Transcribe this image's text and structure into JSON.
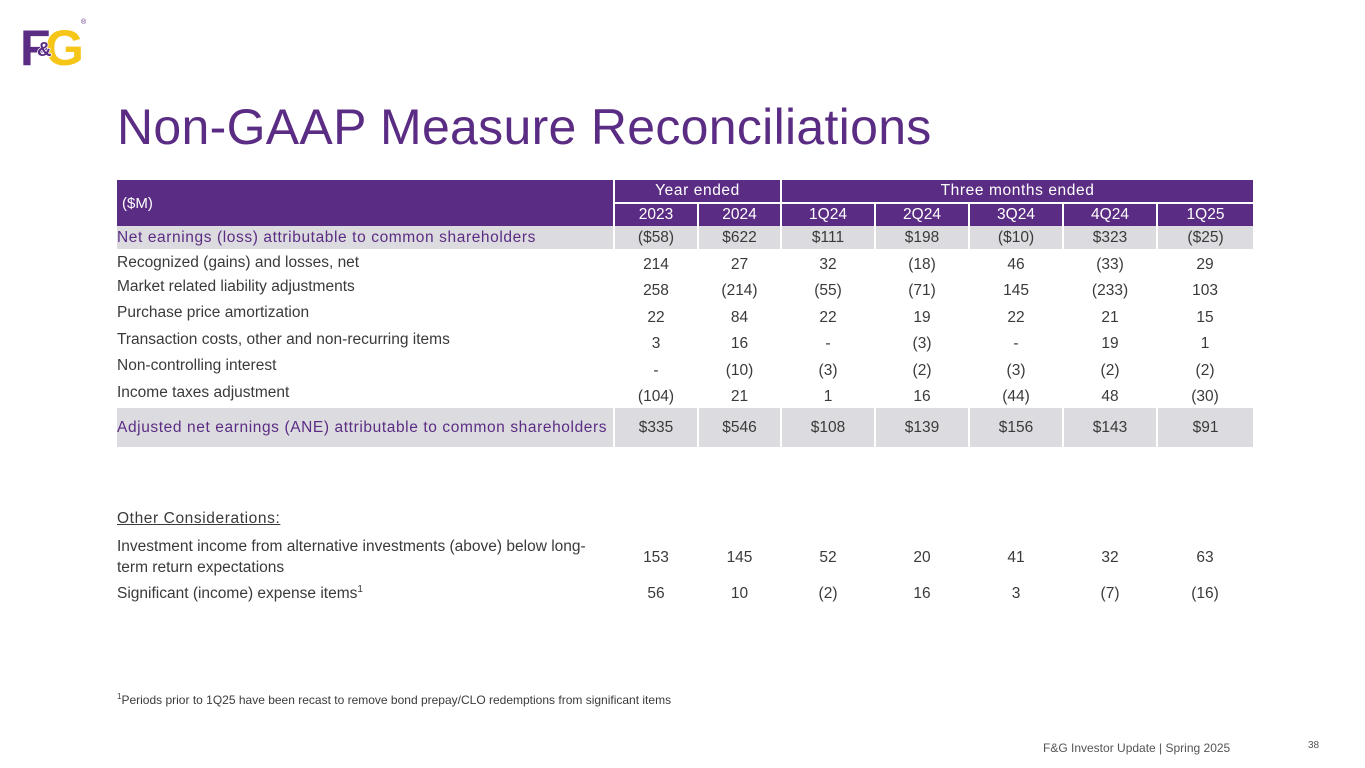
{
  "logo": {
    "text_left": "F",
    "text_amp": "&",
    "text_right": "G",
    "reg": "®",
    "color_purple": "#5b2c83",
    "color_gold": "#f5c518"
  },
  "title": "Non-GAAP Measure Reconciliations",
  "table": {
    "corner_label": "($M)",
    "group_headers": [
      "Year ended",
      "Three months ended"
    ],
    "columns": [
      "2023",
      "2024",
      "1Q24",
      "2Q24",
      "3Q24",
      "4Q24",
      "1Q25"
    ],
    "rows": [
      {
        "label": "Net earnings (loss) attributable to common shareholders",
        "values": [
          "($58)",
          "$622",
          "$111",
          "$198",
          "($10)",
          "$323",
          "($25)"
        ]
      },
      {
        "label": "Recognized (gains) and losses, net",
        "values": [
          "214",
          "27",
          "32",
          "(18)",
          "46",
          "(33)",
          "29"
        ]
      },
      {
        "label": "Market related liability adjustments",
        "values": [
          "258",
          "(214)",
          "(55)",
          "(71)",
          "145",
          "(233)",
          "103"
        ]
      },
      {
        "label": "Purchase price amortization",
        "values": [
          "22",
          "84",
          "22",
          "19",
          "22",
          "21",
          "15"
        ]
      },
      {
        "label": "Transaction costs, other and non-recurring items",
        "values": [
          "3",
          "16",
          "-",
          "(3)",
          "-",
          "19",
          "1"
        ]
      },
      {
        "label": "Non-controlling interest",
        "values": [
          "-",
          "(10)",
          "(3)",
          "(2)",
          "(3)",
          "(2)",
          "(2)"
        ]
      },
      {
        "label": "Income taxes adjustment",
        "values": [
          "(104)",
          "21",
          "1",
          "16",
          "(44)",
          "48",
          "(30)"
        ]
      },
      {
        "label": "Adjusted net earnings (ANE) attributable to common shareholders",
        "values": [
          "$335",
          "$546",
          "$108",
          "$139",
          "$156",
          "$143",
          "$91"
        ]
      }
    ],
    "other_considerations_label": "Other Considerations:",
    "other_rows": [
      {
        "label": "Investment income from alternative investments (above) below long-term return expectations",
        "values": [
          "153",
          "145",
          "52",
          "20",
          "41",
          "32",
          "63"
        ]
      },
      {
        "label": "Significant (income) expense items",
        "sup": "1",
        "values": [
          "56",
          "10",
          "(2)",
          "16",
          "3",
          "(7)",
          "(16)"
        ]
      }
    ]
  },
  "footnote": {
    "marker": "1",
    "text": "Periods prior to 1Q25 have been recast to remove bond prepay/CLO redemptions from significant items"
  },
  "footer": {
    "text": "F&G Investor Update | Spring 2025",
    "page_number": "38"
  }
}
